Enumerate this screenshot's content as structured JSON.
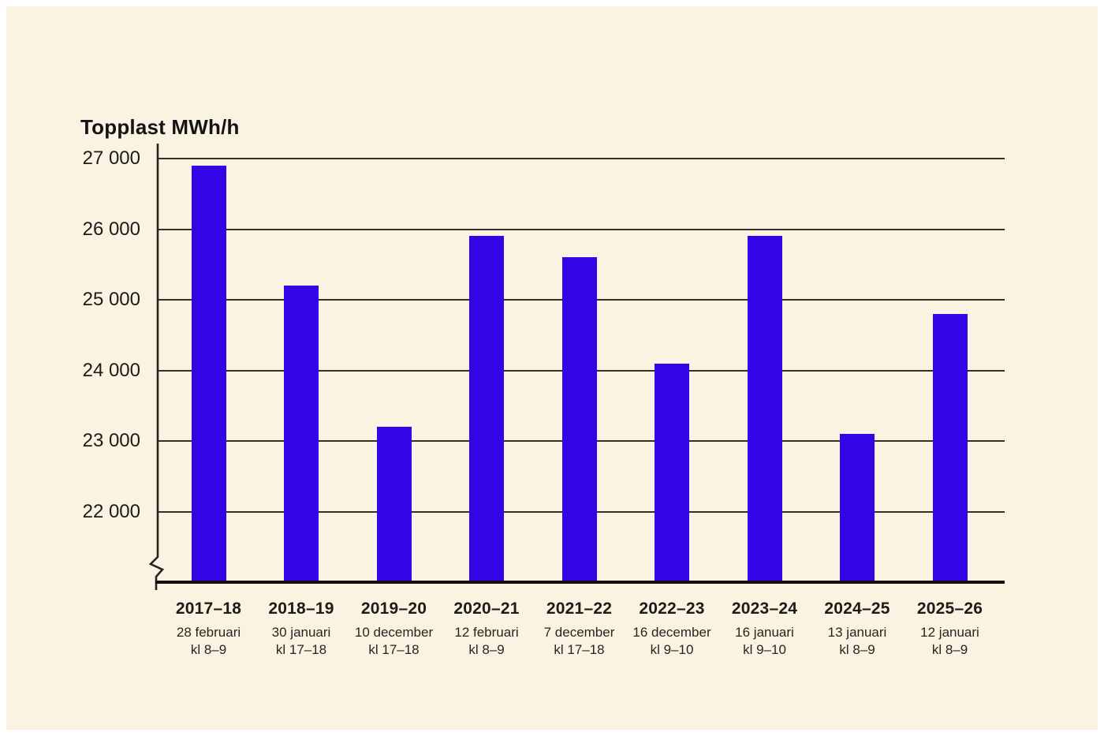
{
  "page": {
    "background": "#ffffff",
    "panel_background": "#faf3e1"
  },
  "chart_data": {
    "type": "bar",
    "title": "Topplast MWh/h",
    "categories": [
      "2017–18",
      "2018–19",
      "2019–20",
      "2020–21",
      "2021–22",
      "2022–23",
      "2023–24",
      "2024–25",
      "2025–26"
    ],
    "sub_labels": [
      [
        "28 februari",
        "kl 8–9"
      ],
      [
        "30 januari",
        "kl 17–18"
      ],
      [
        "10 december",
        "kl 17–18"
      ],
      [
        "12 februari",
        "kl 8–9"
      ],
      [
        "7 december",
        "kl 17–18"
      ],
      [
        "16 december",
        "kl 9–10"
      ],
      [
        "16 januari",
        "kl 9–10"
      ],
      [
        "13 januari",
        "kl 8–9"
      ],
      [
        "12 januari",
        "kl 8–9"
      ]
    ],
    "values": [
      26900,
      25200,
      23200,
      25900,
      25600,
      24100,
      25900,
      23100,
      24800
    ],
    "xlabel": "",
    "ylabel": "Topplast MWh/h",
    "ylim": [
      21000,
      27000
    ],
    "yticks": [
      27000,
      26000,
      25000,
      24000,
      23000,
      22000
    ],
    "ytick_labels": [
      "27 000",
      "26 000",
      "25 000",
      "24 000",
      "23 000",
      "22 000"
    ],
    "grid": true,
    "axis_break": true,
    "legend": "none",
    "bar_color": "#3305e6",
    "grid_color": "#33312b",
    "axis_color": "#26231d",
    "text_color": "#1c1b18"
  }
}
